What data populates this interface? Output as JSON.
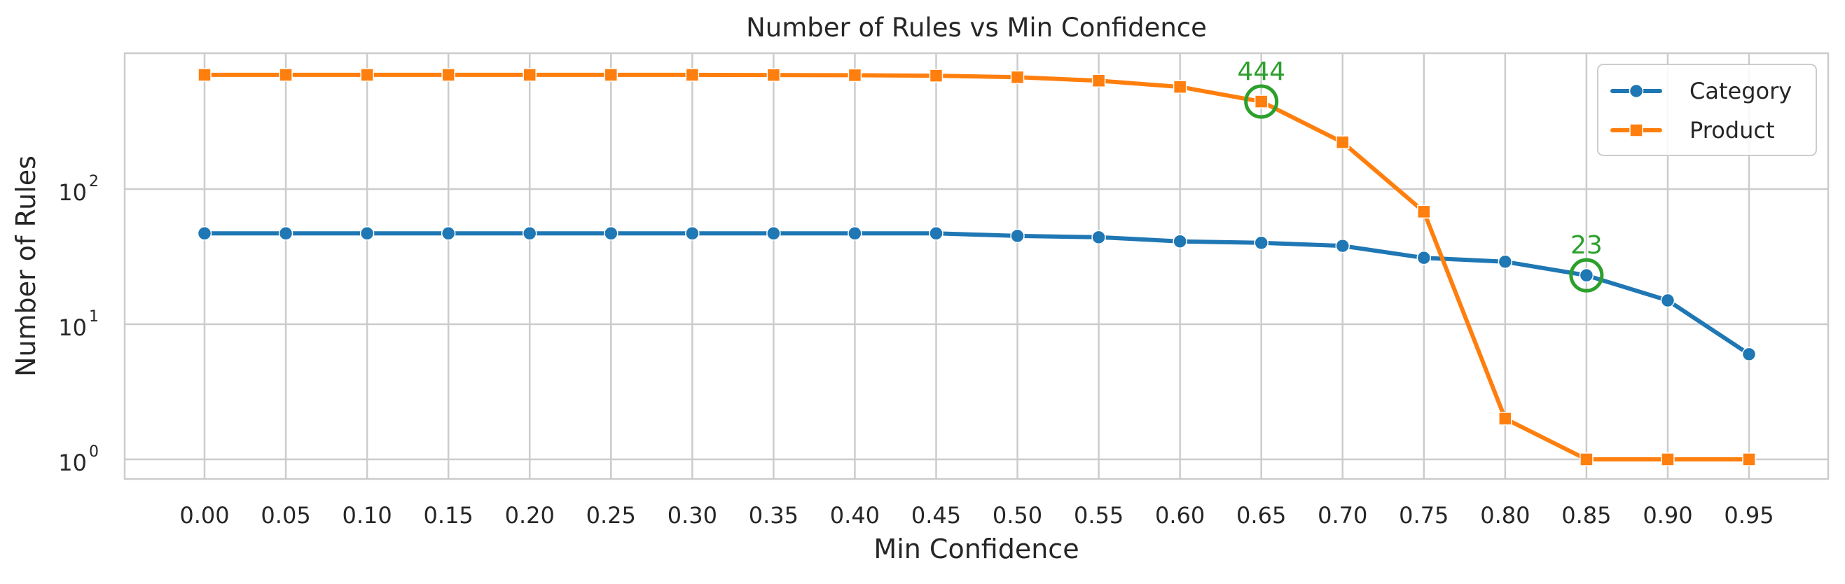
{
  "chart_data": {
    "type": "line",
    "title": "Number of Rules vs Min Confidence",
    "xlabel": "Min Confidence",
    "ylabel": "Number of Rules",
    "yscale": "log",
    "ylim": [
      0.7,
      1000
    ],
    "grid": true,
    "legend_position": "top-right",
    "x": [
      0.0,
      0.05,
      0.1,
      0.15,
      0.2,
      0.25,
      0.3,
      0.35,
      0.4,
      0.45,
      0.5,
      0.55,
      0.6,
      0.65,
      0.7,
      0.75,
      0.8,
      0.85,
      0.9,
      0.95
    ],
    "x_tick_labels": [
      "0.00",
      "0.05",
      "0.10",
      "0.15",
      "0.20",
      "0.25",
      "0.30",
      "0.35",
      "0.40",
      "0.45",
      "0.50",
      "0.55",
      "0.60",
      "0.65",
      "0.70",
      "0.75",
      "0.80",
      "0.85",
      "0.90",
      "0.95"
    ],
    "y_ticks": [
      {
        "value": 1,
        "base": "10",
        "exp": "0"
      },
      {
        "value": 10,
        "base": "10",
        "exp": "1"
      },
      {
        "value": 100,
        "base": "10",
        "exp": "2"
      }
    ],
    "series": [
      {
        "name": "Category",
        "color": "#1f77b4",
        "marker": "circle",
        "values": [
          47,
          47,
          47,
          47,
          47,
          47,
          47,
          47,
          47,
          47,
          45,
          44,
          41,
          40,
          38,
          31,
          29,
          23,
          15,
          6
        ]
      },
      {
        "name": "Product",
        "color": "#ff7f0e",
        "marker": "square",
        "values": [
          700,
          700,
          700,
          700,
          700,
          700,
          700,
          698,
          696,
          690,
          672,
          634,
          570,
          444,
          222,
          68,
          2,
          1,
          1,
          1
        ]
      }
    ],
    "annotations": [
      {
        "x": 0.65,
        "y": 444,
        "label": "444",
        "color": "#2ca02c"
      },
      {
        "x": 0.85,
        "y": 23,
        "label": "23",
        "color": "#2ca02c"
      }
    ]
  }
}
